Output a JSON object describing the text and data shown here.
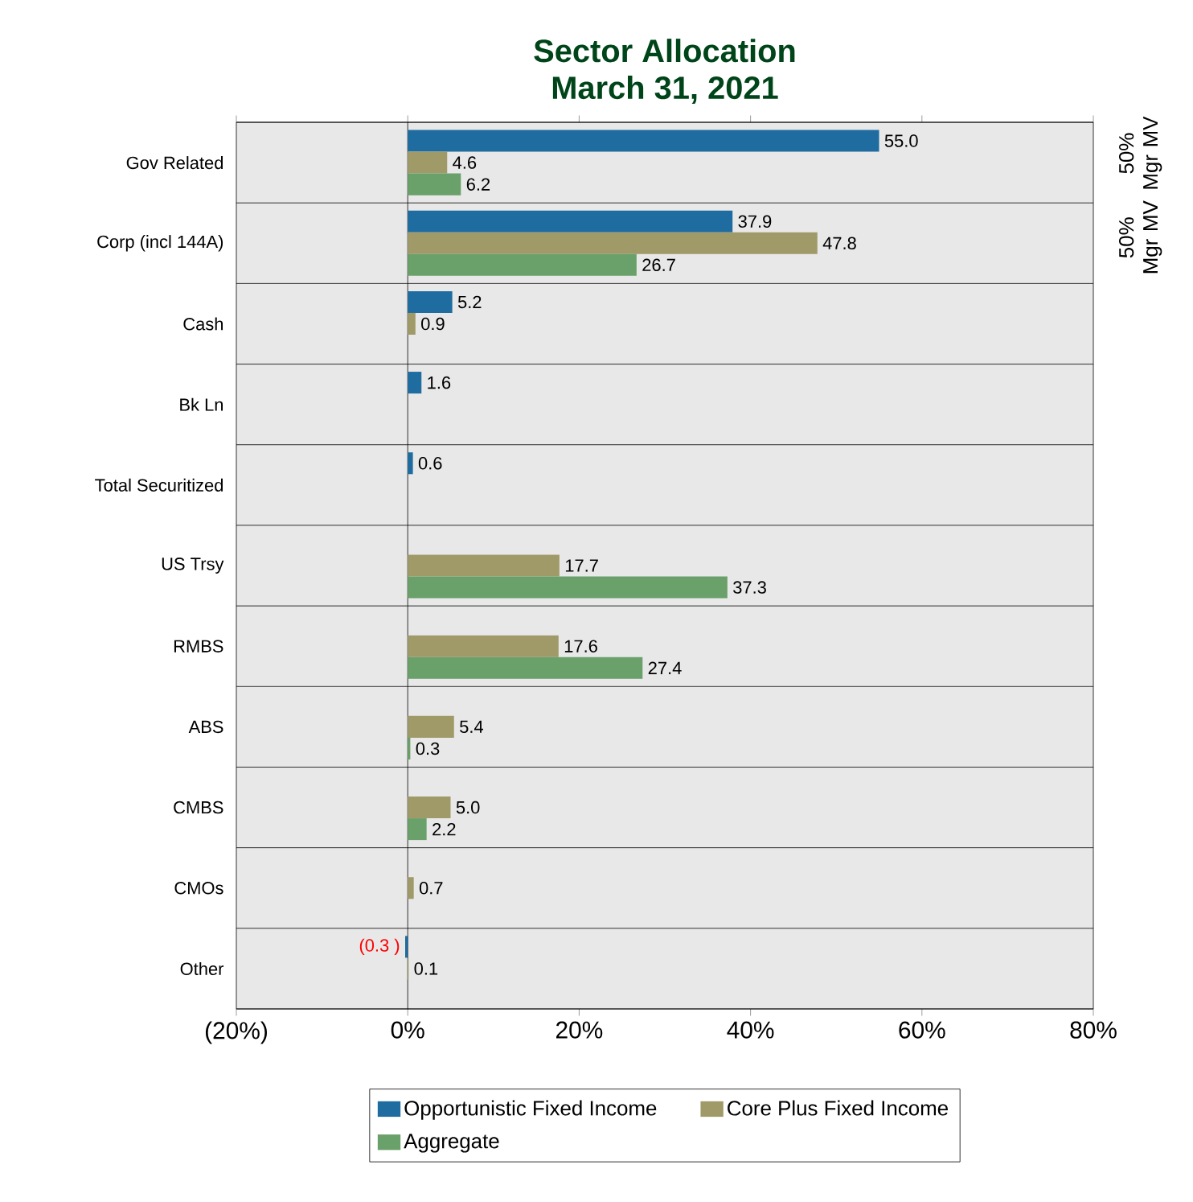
{
  "chart_data": {
    "type": "bar",
    "orientation": "horizontal",
    "title": "Sector Allocation",
    "subtitle": "March 31, 2021",
    "categories": [
      "Gov Related",
      "Corp (incl 144A)",
      "Cash",
      "Bk Ln",
      "Total Securitized",
      "US Trsy",
      "RMBS",
      "ABS",
      "CMBS",
      "CMOs",
      "Other"
    ],
    "series": [
      {
        "name": "Opportunistic Fixed Income",
        "color": "#1f6ca0",
        "values": [
          55.0,
          37.9,
          5.2,
          1.6,
          0.6,
          null,
          null,
          null,
          null,
          null,
          -0.3
        ],
        "value_labels": [
          "55.0",
          "37.9",
          "5.2",
          "1.6",
          "0.6",
          null,
          null,
          null,
          null,
          null,
          "(0.3 )"
        ]
      },
      {
        "name": "Core Plus Fixed Income",
        "color": "#a09a68",
        "values": [
          4.6,
          47.8,
          0.9,
          null,
          null,
          17.7,
          17.6,
          5.4,
          5.0,
          0.7,
          0.1
        ],
        "value_labels": [
          "4.6",
          "47.8",
          "0.9",
          null,
          null,
          "17.7",
          "17.6",
          "5.4",
          "5.0",
          "0.7",
          "0.1"
        ]
      },
      {
        "name": "Aggregate",
        "color": "#6aa06a",
        "values": [
          6.2,
          26.7,
          null,
          null,
          null,
          37.3,
          27.4,
          0.3,
          2.2,
          null,
          null
        ],
        "value_labels": [
          "6.2",
          "26.7",
          null,
          null,
          null,
          "37.3",
          "27.4",
          "0.3",
          "2.2",
          null,
          null
        ]
      }
    ],
    "xlim": [
      -20,
      80
    ],
    "xticks": [
      {
        "value": -20,
        "label": "(20%)"
      },
      {
        "value": 0,
        "label": "0%"
      },
      {
        "value": 20,
        "label": "20%"
      },
      {
        "value": 40,
        "label": "40%"
      },
      {
        "value": 60,
        "label": "60%"
      },
      {
        "value": 80,
        "label": "80%"
      }
    ],
    "grid": "y",
    "legend": "bottom",
    "ref_lines": [
      {
        "axis": "x",
        "value": 0
      }
    ],
    "annotations": [
      "50% Mgr MV",
      "50% Mgr MV"
    ]
  }
}
